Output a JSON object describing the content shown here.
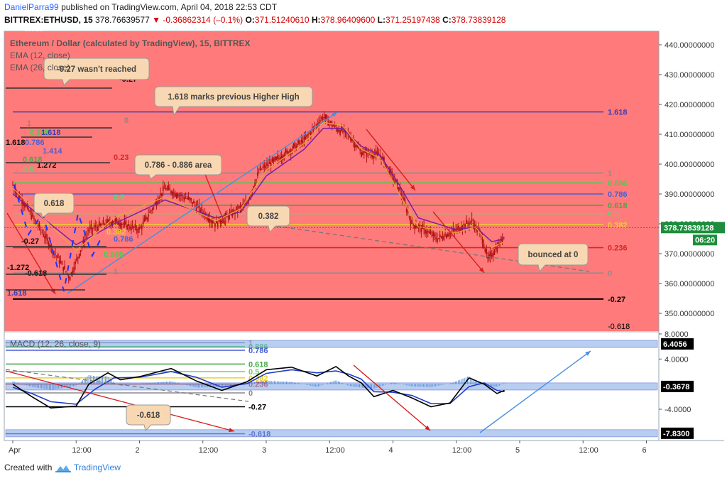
{
  "header": {
    "user": "DanielParra99",
    "published": "published on TradingView.com, April 04, 2018 22:53 CDT",
    "symbol": "BITTREX:ETHUSD, 15",
    "last": "378.76639577",
    "change": "▼ -0.36862314 (–0.1%)",
    "open_label": "O:",
    "open": "371.51240610",
    "high_label": "H:",
    "high": "378.96409600",
    "low_label": "L:",
    "low": "371.25197438",
    "close_label": "C:",
    "close": "378.73839128"
  },
  "footer": {
    "created": "Created with",
    "brand": "TradingView"
  },
  "colors": {
    "bg_red": "#ff7b7b",
    "candle": "#b11212",
    "ema_fast": "#e8a33a",
    "ema_slow": "#7b1fa2",
    "fib_green": "#55d04d",
    "fib_blue": "#4a5fd6",
    "macd_line": "#000000",
    "signal_line": "#1f3cc9"
  },
  "chart_data": [
    {
      "type": "line",
      "title": "Ethereum / Dollar (calculated by TradingView), 15, BITTREX",
      "legend": [
        "EMA (12, close)",
        "EMA (26, close)"
      ],
      "ylim": [
        345,
        448
      ],
      "yticks": [
        "440.00000000",
        "430.00000000",
        "420.00000000",
        "410.00000000",
        "400.00000000",
        "390.00000000",
        "380.00000000",
        "370.00000000",
        "360.00000000",
        "350.00000000"
      ],
      "ytick_values": [
        440,
        430,
        420,
        410,
        400,
        390,
        380,
        370,
        360,
        350
      ],
      "last_price_label": "378.73839128",
      "countdown_label": "06:20",
      "xticks": [
        "Apr",
        "12:00",
        "2",
        "12:00",
        "3",
        "12:00",
        "4",
        "12:00",
        "5",
        "12:00",
        "6"
      ],
      "price_path": [
        [
          0,
          393
        ],
        [
          0.25,
          376
        ],
        [
          0.45,
          362
        ],
        [
          0.6,
          378
        ],
        [
          0.8,
          381
        ],
        [
          1.0,
          378
        ],
        [
          1.2,
          392
        ],
        [
          1.4,
          388
        ],
        [
          1.6,
          380
        ],
        [
          1.75,
          384
        ],
        [
          1.85,
          387
        ],
        [
          1.95,
          398
        ],
        [
          2.1,
          402
        ],
        [
          2.3,
          408
        ],
        [
          2.45,
          416
        ],
        [
          2.55,
          412
        ],
        [
          2.65,
          410
        ],
        [
          2.75,
          404
        ],
        [
          2.9,
          403
        ],
        [
          3.05,
          392
        ],
        [
          3.15,
          380
        ],
        [
          3.25,
          378
        ],
        [
          3.35,
          375
        ],
        [
          3.5,
          378
        ],
        [
          3.62,
          381
        ],
        [
          3.7,
          376
        ],
        [
          3.75,
          368
        ],
        [
          3.82,
          372
        ],
        [
          3.88,
          376
        ]
      ],
      "ema_fast_path": [
        [
          0,
          392
        ],
        [
          0.5,
          371
        ],
        [
          0.8,
          382
        ],
        [
          1.2,
          389
        ],
        [
          1.6,
          381
        ],
        [
          1.8,
          385
        ],
        [
          2.0,
          398
        ],
        [
          2.3,
          407
        ],
        [
          2.45,
          414
        ],
        [
          2.6,
          413
        ],
        [
          2.75,
          405
        ],
        [
          2.9,
          402
        ],
        [
          3.05,
          390
        ],
        [
          3.2,
          379
        ],
        [
          3.5,
          377
        ],
        [
          3.65,
          379
        ],
        [
          3.78,
          372
        ],
        [
          3.88,
          374
        ]
      ],
      "ema_slow_path": [
        [
          0,
          390
        ],
        [
          0.5,
          373
        ],
        [
          0.8,
          380
        ],
        [
          1.2,
          388
        ],
        [
          1.6,
          382
        ],
        [
          1.8,
          384
        ],
        [
          2.0,
          396
        ],
        [
          2.3,
          405
        ],
        [
          2.45,
          412
        ],
        [
          2.6,
          412
        ],
        [
          2.75,
          406
        ],
        [
          2.9,
          403
        ],
        [
          3.05,
          393
        ],
        [
          3.2,
          382
        ],
        [
          3.5,
          378
        ],
        [
          3.65,
          379
        ],
        [
          3.78,
          374
        ],
        [
          3.88,
          375
        ]
      ],
      "fib_levels": [
        {
          "label": "1.618",
          "value": 417.5,
          "color": "#3c3cb4"
        },
        {
          "label": "1",
          "value": 397.0,
          "color": "#8c8c8c"
        },
        {
          "label": "0.886",
          "value": 393.7,
          "color": "#4ccd4c"
        },
        {
          "label": "0.786",
          "value": 390.0,
          "color": "#4a5fd6"
        },
        {
          "label": "0.618",
          "value": 386.2,
          "color": "#45a845"
        },
        {
          "label": "0.5",
          "value": 383.4,
          "color": "#6bcf6b"
        },
        {
          "label": "0.382",
          "value": 379.7,
          "color": "#e9d02a"
        },
        {
          "label": "0.236",
          "value": 372.0,
          "color": "#d62828"
        },
        {
          "label": "0",
          "value": 363.5,
          "color": "#8c8c8c"
        },
        {
          "label": "-0.27",
          "value": 354.8,
          "color": "#000000"
        },
        {
          "label": "-0.618",
          "value": 343.5,
          "color": "#7f3c3c"
        }
      ],
      "annotations": [
        "1.618 marks previous Higher High",
        "0.786 - 0.886 area",
        "0.382",
        "bounced at 0",
        "0.618",
        "-0.27 wasn't reached"
      ],
      "left_fib_labels": [
        "-0.618",
        "-0.27",
        "0",
        "0.886",
        "0.786",
        "1.618",
        "1.414",
        "1.272",
        "0.618",
        "0.5",
        "0.23",
        "1",
        "-1.272",
        "-0.618",
        "1.618",
        "1.618",
        "0.786",
        "0.886",
        "0.382",
        "0.5",
        "0.618",
        "1",
        "-0.27",
        "0.618"
      ]
    },
    {
      "type": "line",
      "title": "MACD (12, 26, close, 9)",
      "ylim": [
        -9.5,
        8
      ],
      "yticks": [
        "8.0000",
        "4.0000",
        "-4.0000"
      ],
      "ytick_values": [
        8,
        4,
        -4
      ],
      "value_labels": [
        "6.4056",
        "-0.3678",
        "-7.8300"
      ],
      "value_label_values": [
        6.4056,
        -0.3678,
        -7.83
      ],
      "fib_levels": [
        {
          "label": "1",
          "value": 6.6,
          "color": "#8c8c8c"
        },
        {
          "label": "0.886",
          "value": 6.0,
          "color": "#4ccd4c"
        },
        {
          "label": "0.786",
          "value": 5.4,
          "color": "#4a5fd6"
        },
        {
          "label": "0.618",
          "value": 3.2,
          "color": "#45a845"
        },
        {
          "label": "0.5",
          "value": 2.0,
          "color": "#6bcf6b"
        },
        {
          "label": "0.382",
          "value": 1.0,
          "color": "#e9d02a"
        },
        {
          "label": "0.236",
          "value": 0.0,
          "color": "#d62828"
        },
        {
          "label": "0",
          "value": -1.4,
          "color": "#8c8c8c"
        },
        {
          "label": "-0.27",
          "value": -3.6,
          "color": "#000000"
        },
        {
          "label": "-0.618",
          "value": -7.9,
          "color": "#3c3cb4"
        }
      ],
      "annotation": "-0.618",
      "macd_path": [
        [
          0,
          0
        ],
        [
          0.15,
          -2
        ],
        [
          0.3,
          -3.8
        ],
        [
          0.5,
          -3.5
        ],
        [
          0.6,
          0
        ],
        [
          0.75,
          1.8
        ],
        [
          0.85,
          0.7
        ],
        [
          1.0,
          1.2
        ],
        [
          1.25,
          2.5
        ],
        [
          1.45,
          0.5
        ],
        [
          1.65,
          -1.0
        ],
        [
          1.85,
          0.4
        ],
        [
          2.0,
          2.3
        ],
        [
          2.2,
          2.7
        ],
        [
          2.4,
          1.3
        ],
        [
          2.55,
          2.8
        ],
        [
          2.65,
          1.3
        ],
        [
          2.75,
          0.2
        ],
        [
          2.85,
          -2.0
        ],
        [
          3.0,
          -1.0
        ],
        [
          3.15,
          -2.2
        ],
        [
          3.3,
          -3.6
        ],
        [
          3.45,
          -3.0
        ],
        [
          3.6,
          1.0
        ],
        [
          3.72,
          0.0
        ],
        [
          3.82,
          -1.5
        ],
        [
          3.88,
          -1.0
        ]
      ],
      "signal_path": [
        [
          0,
          -0.5
        ],
        [
          0.15,
          -1.5
        ],
        [
          0.3,
          -2.8
        ],
        [
          0.5,
          -3.2
        ],
        [
          0.65,
          -0.8
        ],
        [
          0.8,
          1.0
        ],
        [
          1.0,
          1.1
        ],
        [
          1.25,
          2.0
        ],
        [
          1.45,
          1.1
        ],
        [
          1.65,
          -0.5
        ],
        [
          1.85,
          0.1
        ],
        [
          2.0,
          1.7
        ],
        [
          2.2,
          2.3
        ],
        [
          2.4,
          1.8
        ],
        [
          2.55,
          2.1
        ],
        [
          2.65,
          1.6
        ],
        [
          2.75,
          0.8
        ],
        [
          2.85,
          -1.2
        ],
        [
          3.0,
          -1.3
        ],
        [
          3.15,
          -1.8
        ],
        [
          3.3,
          -3.1
        ],
        [
          3.45,
          -3.1
        ],
        [
          3.6,
          -0.4
        ],
        [
          3.72,
          0.2
        ],
        [
          3.82,
          -1.0
        ],
        [
          3.88,
          -1.2
        ]
      ]
    }
  ]
}
